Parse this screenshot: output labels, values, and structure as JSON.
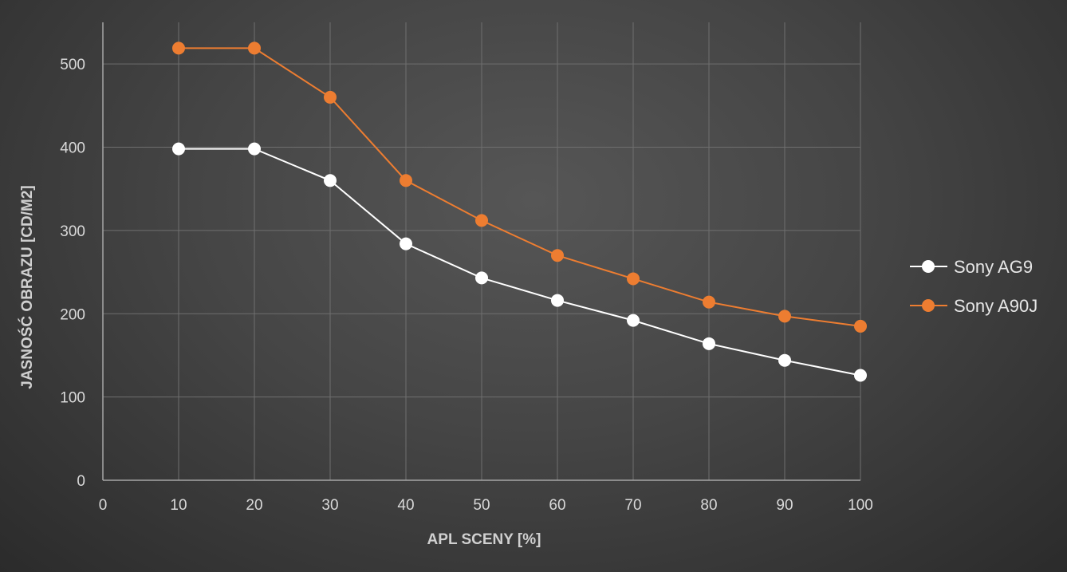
{
  "chart_data": {
    "type": "line",
    "xlabel": "APL SCENY [%]",
    "ylabel": "JASNOŚĆ OBRAZU [CD/M2]",
    "xlim": [
      0,
      100
    ],
    "ylim": [
      0,
      550
    ],
    "x_ticks": [
      0,
      10,
      20,
      30,
      40,
      50,
      60,
      70,
      80,
      90,
      100
    ],
    "y_ticks": [
      0,
      100,
      200,
      300,
      400,
      500
    ],
    "grid": true,
    "legend_position": "right",
    "x": [
      10,
      20,
      30,
      40,
      50,
      60,
      70,
      80,
      90,
      100
    ],
    "series": [
      {
        "name": "Sony AG9",
        "color": "#ffffff",
        "values": [
          398,
          398,
          360,
          284,
          243,
          216,
          192,
          164,
          144,
          126
        ]
      },
      {
        "name": "Sony A90J",
        "color": "#ed7d31",
        "values": [
          519,
          519,
          460,
          360,
          312,
          270,
          242,
          214,
          197,
          185
        ]
      }
    ]
  }
}
